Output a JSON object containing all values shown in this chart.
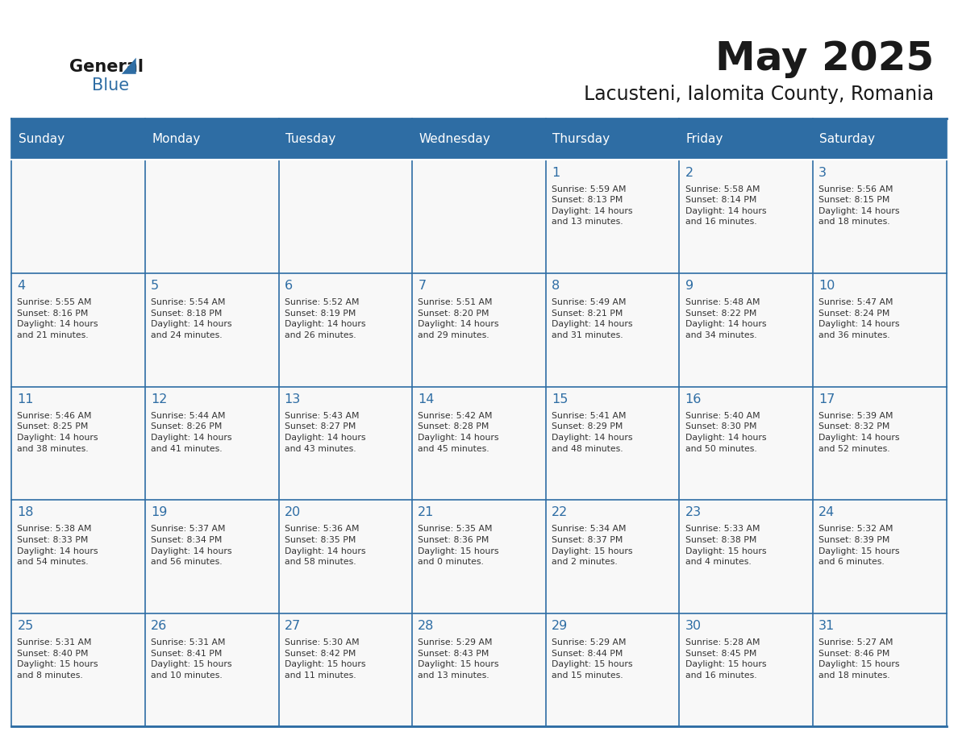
{
  "title": "May 2025",
  "subtitle": "Lacusteni, Ialomita County, Romania",
  "days_of_week": [
    "Sunday",
    "Monday",
    "Tuesday",
    "Wednesday",
    "Thursday",
    "Friday",
    "Saturday"
  ],
  "header_bg": "#2E6DA4",
  "header_text_color": "#FFFFFF",
  "border_color": "#2E6DA4",
  "day_number_color": "#2E6DA4",
  "text_color": "#333333",
  "title_color": "#1a1a1a",
  "calendar_data": [
    [
      {
        "day": "",
        "info": ""
      },
      {
        "day": "",
        "info": ""
      },
      {
        "day": "",
        "info": ""
      },
      {
        "day": "",
        "info": ""
      },
      {
        "day": "1",
        "info": "Sunrise: 5:59 AM\nSunset: 8:13 PM\nDaylight: 14 hours\nand 13 minutes."
      },
      {
        "day": "2",
        "info": "Sunrise: 5:58 AM\nSunset: 8:14 PM\nDaylight: 14 hours\nand 16 minutes."
      },
      {
        "day": "3",
        "info": "Sunrise: 5:56 AM\nSunset: 8:15 PM\nDaylight: 14 hours\nand 18 minutes."
      }
    ],
    [
      {
        "day": "4",
        "info": "Sunrise: 5:55 AM\nSunset: 8:16 PM\nDaylight: 14 hours\nand 21 minutes."
      },
      {
        "day": "5",
        "info": "Sunrise: 5:54 AM\nSunset: 8:18 PM\nDaylight: 14 hours\nand 24 minutes."
      },
      {
        "day": "6",
        "info": "Sunrise: 5:52 AM\nSunset: 8:19 PM\nDaylight: 14 hours\nand 26 minutes."
      },
      {
        "day": "7",
        "info": "Sunrise: 5:51 AM\nSunset: 8:20 PM\nDaylight: 14 hours\nand 29 minutes."
      },
      {
        "day": "8",
        "info": "Sunrise: 5:49 AM\nSunset: 8:21 PM\nDaylight: 14 hours\nand 31 minutes."
      },
      {
        "day": "9",
        "info": "Sunrise: 5:48 AM\nSunset: 8:22 PM\nDaylight: 14 hours\nand 34 minutes."
      },
      {
        "day": "10",
        "info": "Sunrise: 5:47 AM\nSunset: 8:24 PM\nDaylight: 14 hours\nand 36 minutes."
      }
    ],
    [
      {
        "day": "11",
        "info": "Sunrise: 5:46 AM\nSunset: 8:25 PM\nDaylight: 14 hours\nand 38 minutes."
      },
      {
        "day": "12",
        "info": "Sunrise: 5:44 AM\nSunset: 8:26 PM\nDaylight: 14 hours\nand 41 minutes."
      },
      {
        "day": "13",
        "info": "Sunrise: 5:43 AM\nSunset: 8:27 PM\nDaylight: 14 hours\nand 43 minutes."
      },
      {
        "day": "14",
        "info": "Sunrise: 5:42 AM\nSunset: 8:28 PM\nDaylight: 14 hours\nand 45 minutes."
      },
      {
        "day": "15",
        "info": "Sunrise: 5:41 AM\nSunset: 8:29 PM\nDaylight: 14 hours\nand 48 minutes."
      },
      {
        "day": "16",
        "info": "Sunrise: 5:40 AM\nSunset: 8:30 PM\nDaylight: 14 hours\nand 50 minutes."
      },
      {
        "day": "17",
        "info": "Sunrise: 5:39 AM\nSunset: 8:32 PM\nDaylight: 14 hours\nand 52 minutes."
      }
    ],
    [
      {
        "day": "18",
        "info": "Sunrise: 5:38 AM\nSunset: 8:33 PM\nDaylight: 14 hours\nand 54 minutes."
      },
      {
        "day": "19",
        "info": "Sunrise: 5:37 AM\nSunset: 8:34 PM\nDaylight: 14 hours\nand 56 minutes."
      },
      {
        "day": "20",
        "info": "Sunrise: 5:36 AM\nSunset: 8:35 PM\nDaylight: 14 hours\nand 58 minutes."
      },
      {
        "day": "21",
        "info": "Sunrise: 5:35 AM\nSunset: 8:36 PM\nDaylight: 15 hours\nand 0 minutes."
      },
      {
        "day": "22",
        "info": "Sunrise: 5:34 AM\nSunset: 8:37 PM\nDaylight: 15 hours\nand 2 minutes."
      },
      {
        "day": "23",
        "info": "Sunrise: 5:33 AM\nSunset: 8:38 PM\nDaylight: 15 hours\nand 4 minutes."
      },
      {
        "day": "24",
        "info": "Sunrise: 5:32 AM\nSunset: 8:39 PM\nDaylight: 15 hours\nand 6 minutes."
      }
    ],
    [
      {
        "day": "25",
        "info": "Sunrise: 5:31 AM\nSunset: 8:40 PM\nDaylight: 15 hours\nand 8 minutes."
      },
      {
        "day": "26",
        "info": "Sunrise: 5:31 AM\nSunset: 8:41 PM\nDaylight: 15 hours\nand 10 minutes."
      },
      {
        "day": "27",
        "info": "Sunrise: 5:30 AM\nSunset: 8:42 PM\nDaylight: 15 hours\nand 11 minutes."
      },
      {
        "day": "28",
        "info": "Sunrise: 5:29 AM\nSunset: 8:43 PM\nDaylight: 15 hours\nand 13 minutes."
      },
      {
        "day": "29",
        "info": "Sunrise: 5:29 AM\nSunset: 8:44 PM\nDaylight: 15 hours\nand 15 minutes."
      },
      {
        "day": "30",
        "info": "Sunrise: 5:28 AM\nSunset: 8:45 PM\nDaylight: 15 hours\nand 16 minutes."
      },
      {
        "day": "31",
        "info": "Sunrise: 5:27 AM\nSunset: 8:46 PM\nDaylight: 15 hours\nand 18 minutes."
      }
    ]
  ]
}
